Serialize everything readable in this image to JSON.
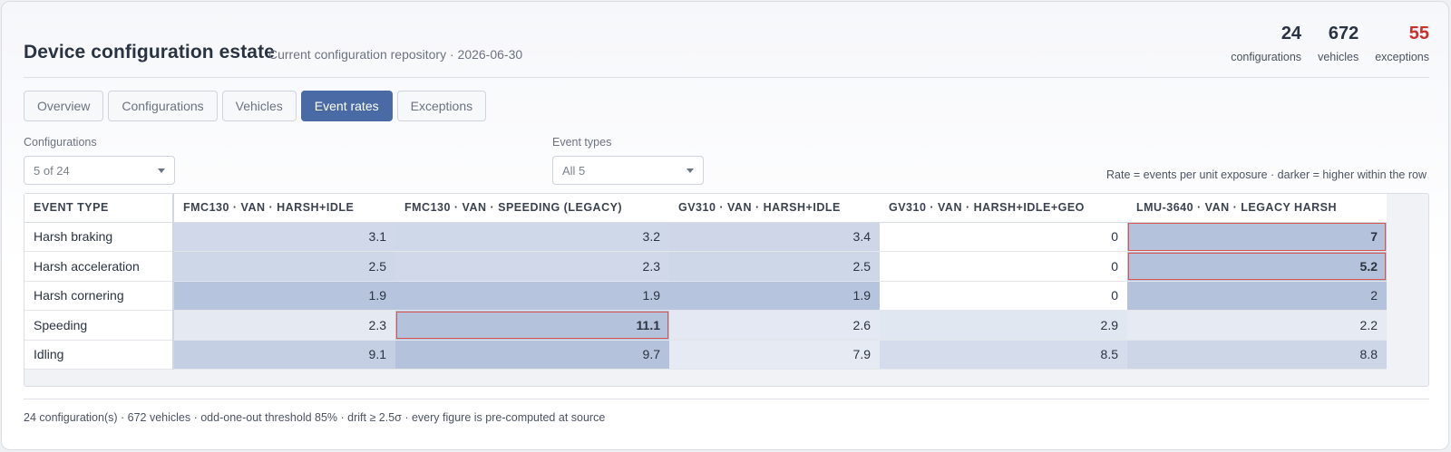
{
  "header": {
    "title": "Device configuration estate",
    "subtitle": "Current configuration repository · 2026-06-30",
    "stats": [
      {
        "value": "24",
        "label": "configurations"
      },
      {
        "value": "672",
        "label": "vehicles"
      },
      {
        "value": "55",
        "label": "exceptions"
      }
    ]
  },
  "tabs": [
    {
      "label": "Overview",
      "active": false
    },
    {
      "label": "Configurations",
      "active": false
    },
    {
      "label": "Vehicles",
      "active": false
    },
    {
      "label": "Event rates",
      "active": true
    },
    {
      "label": "Exceptions",
      "active": false
    }
  ],
  "filters": {
    "configurations": {
      "label": "Configurations",
      "value": "5 of 24"
    },
    "event_types": {
      "label": "Event types",
      "value": "All 5"
    }
  },
  "legend_note": "Rate = events per unit exposure · darker = higher within the row",
  "colors": {
    "accent": "#4a6aa5",
    "alert": "#c9302c",
    "flag_border": "#d9534f",
    "heat_low": "#ffffff",
    "heat_high": "#b5c2dc"
  },
  "table": {
    "first_header": "EVENT TYPE",
    "columns": [
      "FMC130 · VAN · HARSH+IDLE",
      "FMC130 · VAN · SPEEDING (LEGACY)",
      "GV310 · VAN · HARSH+IDLE",
      "GV310 · VAN · HARSH+IDLE+GEO",
      "LMU-3640 · VAN · LEGACY HARSH"
    ],
    "rows": [
      {
        "label": "Harsh braking",
        "values": [
          "3.1",
          "3.2",
          "3.4",
          "0",
          "7"
        ],
        "flags": [
          false,
          false,
          false,
          false,
          true
        ]
      },
      {
        "label": "Harsh acceleration",
        "values": [
          "2.5",
          "2.3",
          "2.5",
          "0",
          "5.2"
        ],
        "flags": [
          false,
          false,
          false,
          false,
          true
        ]
      },
      {
        "label": "Harsh cornering",
        "values": [
          "1.9",
          "1.9",
          "1.9",
          "0",
          "2"
        ],
        "flags": [
          false,
          false,
          false,
          false,
          false
        ]
      },
      {
        "label": "Speeding",
        "values": [
          "2.3",
          "11.1",
          "2.6",
          "2.9",
          "2.2"
        ],
        "flags": [
          false,
          true,
          false,
          false,
          false
        ]
      },
      {
        "label": "Idling",
        "values": [
          "9.1",
          "9.7",
          "7.9",
          "8.5",
          "8.8"
        ],
        "flags": [
          false,
          false,
          false,
          false,
          false
        ]
      }
    ]
  },
  "footer": "24 configuration(s) · 672 vehicles · odd-one-out threshold 85% · drift ≥ 2.5σ · every figure is pre-computed at source"
}
